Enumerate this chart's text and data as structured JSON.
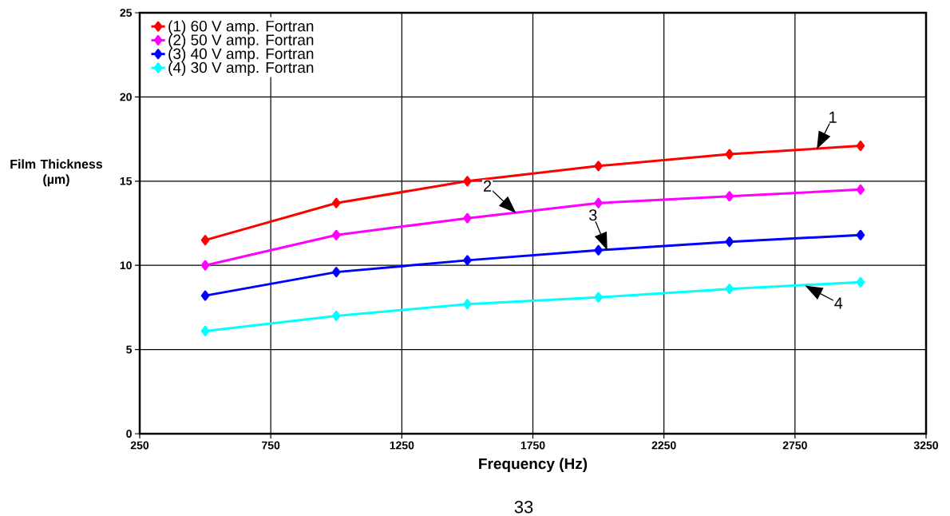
{
  "chart_data": {
    "type": "line",
    "xlabel": "Frequency (Hz)",
    "ylabel": "Film Thickness (µm)",
    "x": [
      500,
      1000,
      1500,
      2000,
      2500,
      3000
    ],
    "series": [
      {
        "name": "(1) 60 V amp. Fortran",
        "color": "#ff0000",
        "values": [
          11.5,
          13.7,
          15.0,
          15.9,
          16.6,
          17.1
        ]
      },
      {
        "name": "(2) 50 V amp. Fortran",
        "color": "#ff00ff",
        "values": [
          10.0,
          11.8,
          12.8,
          13.7,
          14.1,
          14.5
        ]
      },
      {
        "name": "(3) 40 V amp. Fortran",
        "color": "#0000ff",
        "values": [
          8.2,
          9.6,
          10.3,
          10.9,
          11.4,
          11.8
        ]
      },
      {
        "name": "(4) 30 V amp. Fortran",
        "color": "#00ffff",
        "values": [
          6.1,
          7.0,
          7.7,
          8.1,
          8.6,
          9.0
        ]
      }
    ],
    "xlim": [
      250,
      3250
    ],
    "xticks": [
      250,
      750,
      1250,
      1750,
      2250,
      2750,
      3250
    ],
    "ylim": [
      0,
      25
    ],
    "yticks": [
      0,
      5,
      10,
      15,
      20,
      25
    ],
    "grid": true,
    "legend": "top left",
    "marker": "diamond",
    "line_style": "solid",
    "annotations": [
      {
        "text": "1",
        "x": 2833,
        "y": 16.9
      },
      {
        "text": "2",
        "x": 1686,
        "y": 13.1
      },
      {
        "text": "3",
        "x": 2034,
        "y": 10.9
      },
      {
        "text": "4",
        "x": 2788,
        "y": 8.8
      },
      "33"
    ]
  }
}
